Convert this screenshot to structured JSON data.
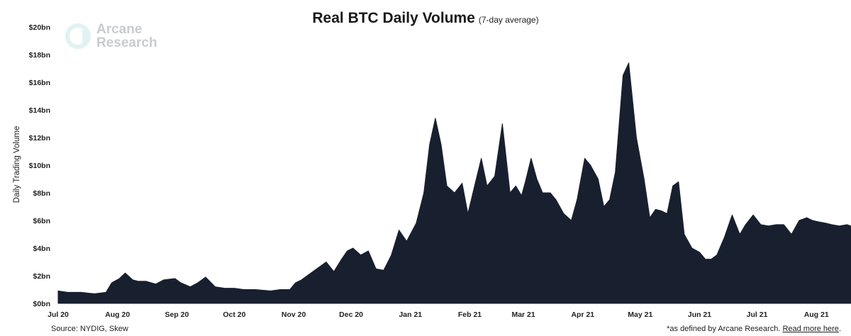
{
  "chart_data": {
    "type": "area",
    "title": "Real BTC Daily Volume",
    "subtitle": "(7-day average)",
    "ylabel": "Daily Trading Volume",
    "xlabel": "",
    "ylim": [
      0,
      20
    ],
    "y_ticks": [
      "$0bn",
      "$2bn",
      "$4bn",
      "$6bn",
      "$8bn",
      "$10bn",
      "$12bn",
      "$14bn",
      "$16bn",
      "$18bn",
      "$20bn"
    ],
    "x_ticks": [
      "Jul 20",
      "Aug 20",
      "Sep 20",
      "Oct 20",
      "Nov 20",
      "Dec 20",
      "Jan 21",
      "Feb 21",
      "Mar 21",
      "Apr 21",
      "May 21",
      "Jun 21",
      "Jul 21",
      "Aug 21"
    ],
    "grid": false,
    "legend": "none",
    "series": [
      {
        "color": "#18202f",
        "x": [
          "2020-07-01",
          "2020-07-06",
          "2020-07-13",
          "2020-07-20",
          "2020-07-26",
          "2020-07-29",
          "2020-08-02",
          "2020-08-05",
          "2020-08-09",
          "2020-08-12",
          "2020-08-16",
          "2020-08-21",
          "2020-08-25",
          "2020-08-31",
          "2020-09-03",
          "2020-09-08",
          "2020-09-12",
          "2020-09-16",
          "2020-09-21",
          "2020-09-26",
          "2020-10-01",
          "2020-10-06",
          "2020-10-12",
          "2020-10-20",
          "2020-10-25",
          "2020-10-30",
          "2020-11-02",
          "2020-11-05",
          "2020-11-08",
          "2020-11-13",
          "2020-11-18",
          "2020-11-22",
          "2020-11-26",
          "2020-11-29",
          "2020-12-02",
          "2020-12-06",
          "2020-12-10",
          "2020-12-14",
          "2020-12-18",
          "2020-12-22",
          "2020-12-26",
          "2020-12-30",
          "2021-01-04",
          "2021-01-08",
          "2021-01-11",
          "2021-01-14",
          "2021-01-17",
          "2021-01-20",
          "2021-01-24",
          "2021-01-28",
          "2021-01-31",
          "2021-02-04",
          "2021-02-07",
          "2021-02-10",
          "2021-02-14",
          "2021-02-18",
          "2021-02-22",
          "2021-02-25",
          "2021-02-28",
          "2021-03-02",
          "2021-03-05",
          "2021-03-08",
          "2021-03-11",
          "2021-03-15",
          "2021-03-18",
          "2021-03-22",
          "2021-03-26",
          "2021-03-29",
          "2021-04-02",
          "2021-04-05",
          "2021-04-09",
          "2021-04-12",
          "2021-04-15",
          "2021-04-18",
          "2021-04-22",
          "2021-04-25",
          "2021-04-29",
          "2021-05-03",
          "2021-05-06",
          "2021-05-09",
          "2021-05-12",
          "2021-05-15",
          "2021-05-18",
          "2021-05-21",
          "2021-05-24",
          "2021-05-28",
          "2021-06-01",
          "2021-06-04",
          "2021-06-07",
          "2021-06-10",
          "2021-06-14",
          "2021-06-18",
          "2021-06-22",
          "2021-06-25",
          "2021-06-29",
          "2021-07-03",
          "2021-07-07",
          "2021-07-11",
          "2021-07-15",
          "2021-07-19",
          "2021-07-23",
          "2021-07-27",
          "2021-07-30",
          "2021-08-02",
          "2021-08-06",
          "2021-08-09",
          "2021-08-13",
          "2021-08-17",
          "2021-08-21",
          "2021-08-25"
        ],
        "y": [
          0.9,
          0.8,
          0.8,
          0.7,
          0.8,
          1.5,
          1.8,
          2.2,
          1.7,
          1.6,
          1.6,
          1.4,
          1.7,
          1.8,
          1.5,
          1.2,
          1.5,
          1.9,
          1.2,
          1.1,
          1.1,
          1.0,
          1.0,
          0.9,
          1.0,
          1.0,
          1.5,
          1.7,
          2.0,
          2.5,
          3.0,
          2.3,
          3.2,
          3.8,
          4.0,
          3.5,
          3.8,
          2.5,
          2.4,
          3.5,
          5.3,
          4.5,
          5.8,
          8.0,
          11.5,
          13.4,
          11.5,
          8.5,
          8.0,
          8.7,
          6.5,
          8.8,
          10.5,
          8.5,
          9.2,
          13.0,
          8.0,
          8.5,
          7.8,
          8.8,
          10.5,
          9.0,
          8.0,
          8.0,
          7.5,
          6.5,
          6.0,
          7.5,
          10.5,
          10.0,
          9.0,
          7.0,
          7.5,
          9.5,
          16.5,
          17.4,
          12.0,
          9.0,
          6.2,
          6.8,
          6.7,
          6.5,
          8.5,
          8.8,
          5.0,
          4.0,
          3.7,
          3.2,
          3.2,
          3.5,
          4.8,
          6.4,
          5.0,
          5.7,
          6.4,
          5.7,
          5.6,
          5.7,
          5.7,
          5.0,
          6.0,
          6.2,
          6.0,
          5.9,
          5.8,
          5.7,
          5.6,
          5.7,
          5.5,
          5.0
        ]
      }
    ]
  },
  "footer": {
    "source": "Source: NYDIG, Skew",
    "note": "*as defined by Arcane Research.",
    "link": "Read more here",
    "link_suffix": "."
  },
  "logo": {
    "line1": "Arcane",
    "line2": "Research"
  }
}
